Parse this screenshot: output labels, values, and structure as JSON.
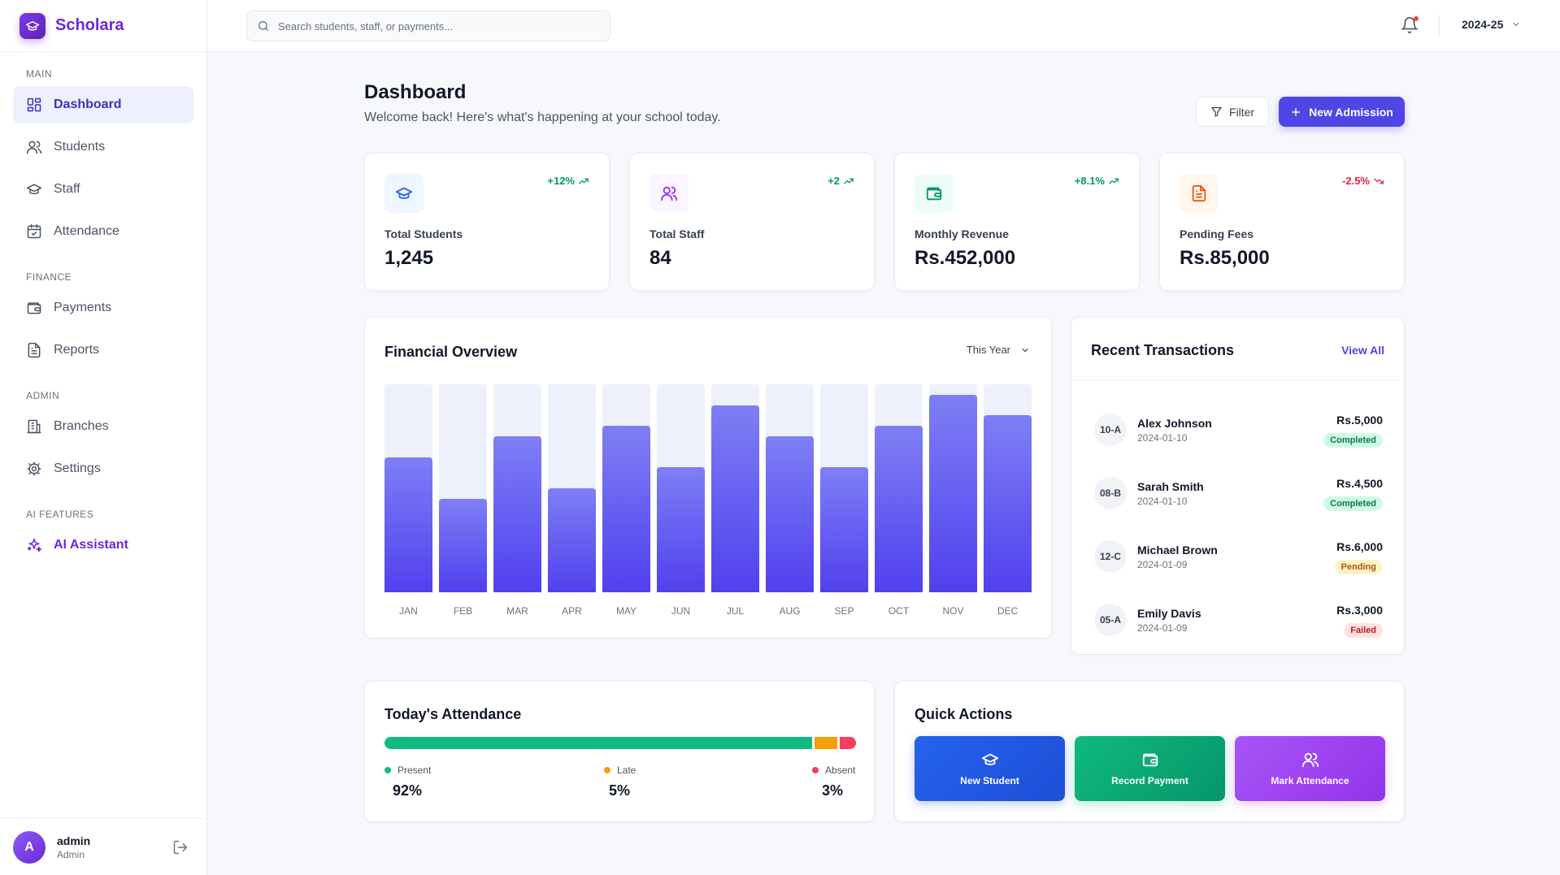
{
  "brand": {
    "name": "Scholara",
    "logo_icon": "graduation-cap-icon"
  },
  "sidebar": {
    "sections": [
      {
        "title": "MAIN",
        "items": [
          {
            "label": "Dashboard",
            "icon": "dashboard-icon",
            "active": true
          },
          {
            "label": "Students",
            "icon": "users-icon"
          },
          {
            "label": "Staff",
            "icon": "graduation-cap-icon"
          },
          {
            "label": "Attendance",
            "icon": "calendar-check-icon"
          }
        ]
      },
      {
        "title": "FINANCE",
        "items": [
          {
            "label": "Payments",
            "icon": "wallet-icon"
          },
          {
            "label": "Reports",
            "icon": "file-text-icon"
          }
        ]
      },
      {
        "title": "ADMIN",
        "items": [
          {
            "label": "Branches",
            "icon": "building-icon"
          },
          {
            "label": "Settings",
            "icon": "gear-icon"
          }
        ]
      },
      {
        "title": "AI FEATURES",
        "items": [
          {
            "label": "AI Assistant",
            "icon": "sparkles-icon"
          }
        ]
      }
    ],
    "user": {
      "initial": "A",
      "name": "admin",
      "role": "Admin"
    }
  },
  "topbar": {
    "search_placeholder": "Search students, staff, or payments...",
    "academic_year": "2024-25"
  },
  "header": {
    "title": "Dashboard",
    "subtitle": "Welcome back! Here's what's happening at your school today.",
    "filter_label": "Filter",
    "new_admission_label": "New Admission"
  },
  "stats": [
    {
      "label": "Total Students",
      "value": "1,245",
      "trend": "+12%",
      "direction": "up",
      "icon": "graduation-cap-icon",
      "color": "#2563eb",
      "bg": "#eff6ff"
    },
    {
      "label": "Total Staff",
      "value": "84",
      "trend": "+2",
      "direction": "up",
      "icon": "users-icon",
      "color": "#9333ea",
      "bg": "#faf5ff"
    },
    {
      "label": "Monthly Revenue",
      "value": "Rs.452,000",
      "trend": "+8.1%",
      "direction": "up",
      "icon": "wallet-icon",
      "color": "#059669",
      "bg": "#ecfdf5"
    },
    {
      "label": "Pending Fees",
      "value": "Rs.85,000",
      "trend": "-2.5%",
      "direction": "down",
      "icon": "file-text-icon",
      "color": "#ea580c",
      "bg": "#fff7ed"
    }
  ],
  "financial": {
    "title": "Financial Overview",
    "period": "This Year"
  },
  "chart_data": {
    "type": "bar",
    "categories": [
      "JAN",
      "FEB",
      "MAR",
      "APR",
      "MAY",
      "JUN",
      "JUL",
      "AUG",
      "SEP",
      "OCT",
      "NOV",
      "DEC"
    ],
    "values": [
      65,
      45,
      75,
      50,
      80,
      60,
      90,
      75,
      60,
      80,
      95,
      85
    ],
    "ylim": [
      0,
      100
    ],
    "colors": {
      "track": "#eef0fb",
      "fill": "#5b4bf0"
    }
  },
  "transactions": {
    "title": "Recent Transactions",
    "view_all": "View All",
    "items": [
      {
        "class": "10-A",
        "name": "Alex Johnson",
        "date": "2024-01-10",
        "amount": "Rs.5,000",
        "status": "Completed",
        "kind": "completed"
      },
      {
        "class": "08-B",
        "name": "Sarah Smith",
        "date": "2024-01-10",
        "amount": "Rs.4,500",
        "status": "Completed",
        "kind": "completed"
      },
      {
        "class": "12-C",
        "name": "Michael Brown",
        "date": "2024-01-09",
        "amount": "Rs.6,000",
        "status": "Pending",
        "kind": "pending"
      },
      {
        "class": "05-A",
        "name": "Emily Davis",
        "date": "2024-01-09",
        "amount": "Rs.3,000",
        "status": "Failed",
        "kind": "failed"
      }
    ]
  },
  "attendance": {
    "title": "Today's Attendance",
    "present_label": "Present",
    "present_value": "92%",
    "late_label": "Late",
    "late_value": "5%",
    "absent_label": "Absent",
    "absent_value": "3%",
    "colors": {
      "present": "#10b981",
      "late": "#f59e0b",
      "absent": "#f43f5e"
    }
  },
  "quick_actions": {
    "title": "Quick Actions",
    "new_student": "New Student",
    "record_payment": "Record Payment",
    "mark_attendance": "Mark Attendance"
  }
}
